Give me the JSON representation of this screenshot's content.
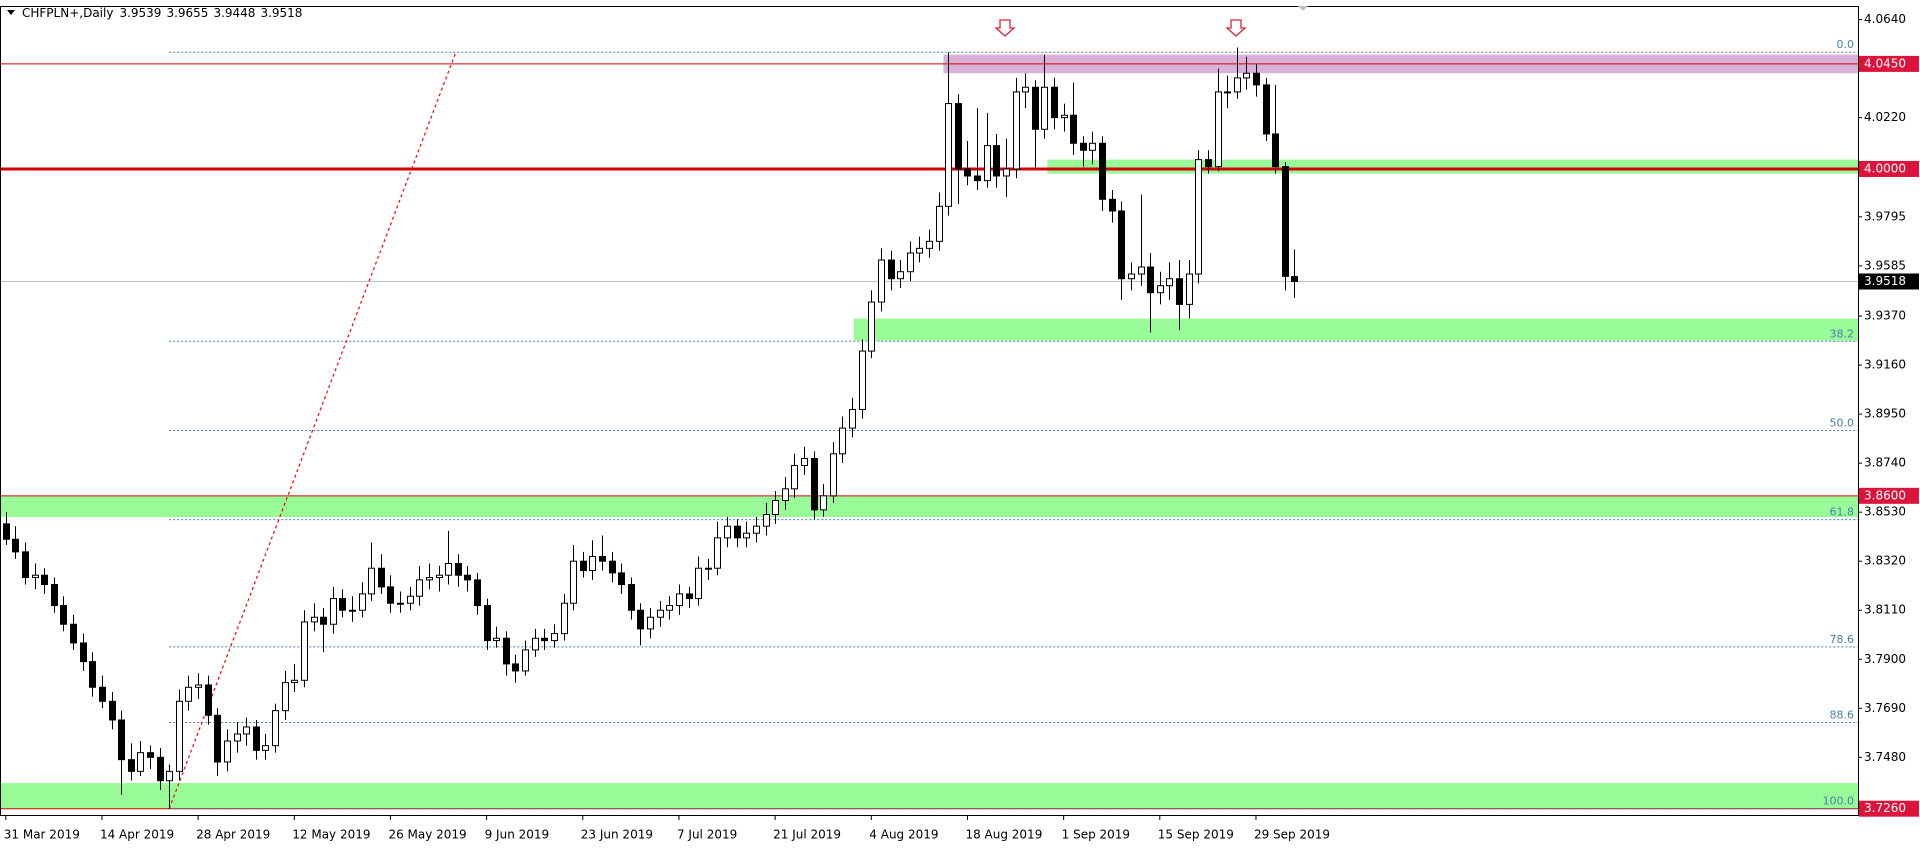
{
  "chart_data": {
    "type": "candlestick",
    "symbol": "CHFPLN+,Daily",
    "up_color": "#ffffff",
    "down_color": "#000000",
    "outline_color": "#000000",
    "grid": false,
    "xlim": [
      -0.6,
      192.6
    ],
    "xticks": [
      {
        "value": 0,
        "label": "31 Mar 2019"
      },
      {
        "value": 10,
        "label": "14 Apr 2019"
      },
      {
        "value": 20,
        "label": "28 Apr 2019"
      },
      {
        "value": 30,
        "label": "12 May 2019"
      },
      {
        "value": 40,
        "label": "26 May 2019"
      },
      {
        "value": 50,
        "label": "9 Jun 2019"
      },
      {
        "value": 60,
        "label": "23 Jun 2019"
      },
      {
        "value": 70,
        "label": "7 Jul 2019"
      },
      {
        "value": 80,
        "label": "21 Jul 2019"
      },
      {
        "value": 90,
        "label": "4 Aug 2019"
      },
      {
        "value": 100,
        "label": "18 Aug 2019"
      },
      {
        "value": 110,
        "label": "1 Sep 2019"
      },
      {
        "value": 120,
        "label": "15 Sep 2019"
      },
      {
        "value": 130,
        "label": "29 Sep 2019"
      }
    ],
    "ylim": [
      3.7233,
      4.0698
    ],
    "yticks": [
      {
        "value": 4.064,
        "label": "4.0640"
      },
      {
        "value": 4.022,
        "label": "4.0220"
      },
      {
        "value": 3.9795,
        "label": "3.9795"
      },
      {
        "value": 3.9585,
        "label": "3.9585"
      },
      {
        "value": 3.937,
        "label": "3.9370"
      },
      {
        "value": 3.916,
        "label": "3.9160"
      },
      {
        "value": 3.895,
        "label": "3.8950"
      },
      {
        "value": 3.874,
        "label": "3.8740"
      },
      {
        "value": 3.853,
        "label": "3.8530"
      },
      {
        "value": 3.832,
        "label": "3.8320"
      },
      {
        "value": 3.811,
        "label": "3.8110"
      },
      {
        "value": 3.79,
        "label": "3.7900"
      },
      {
        "value": 3.769,
        "label": "3.7690"
      },
      {
        "value": 3.748,
        "label": "3.7480"
      }
    ],
    "open": [
      3.848,
      3.8414,
      3.836,
      3.825,
      3.826,
      3.822,
      3.813,
      3.805,
      3.797,
      3.789,
      3.778,
      3.772,
      3.764,
      3.747,
      3.742,
      3.75,
      3.748,
      3.738,
      3.742,
      3.772,
      3.778,
      3.779,
      3.766,
      3.746,
      3.755,
      3.758,
      3.761,
      3.751,
      3.753,
      3.768,
      3.78,
      3.781,
      3.806,
      3.808,
      3.805,
      3.816,
      3.811,
      3.811,
      3.818,
      3.829,
      3.821,
      3.814,
      3.814,
      3.817,
      3.824,
      3.825,
      3.826,
      3.831,
      3.826,
      3.824,
      3.813,
      3.798,
      3.799,
      3.788,
      3.785,
      3.794,
      3.799,
      3.798,
      3.801,
      3.814,
      3.832,
      3.828,
      3.834,
      3.832,
      3.827,
      3.822,
      3.811,
      3.803,
      3.808,
      3.811,
      3.813,
      3.818,
      3.816,
      3.829,
      3.829,
      3.842,
      3.847,
      3.842,
      3.844,
      3.847,
      3.852,
      3.858,
      3.863,
      3.873,
      3.876,
      3.854,
      3.86,
      3.878,
      3.889,
      3.897,
      3.922,
      3.943,
      3.961,
      3.953,
      3.956,
      3.964,
      3.966,
      3.969,
      3.984,
      4.028,
      4.0,
      3.997,
      3.995,
      4.01,
      3.997,
      4.0,
      4.033,
      4.035,
      4.017,
      4.035,
      4.022,
      4.023,
      4.011,
      4.008,
      4.011,
      3.987,
      3.982,
      3.953,
      3.955,
      3.958,
      3.947,
      3.95,
      3.953,
      3.942,
      3.955,
      4.004,
      4.001,
      4.033,
      4.033,
      4.039,
      4.041,
      4.036,
      4.015,
      4.001,
      3.9539
    ],
    "high": [
      3.853,
      3.847,
      3.84,
      3.831,
      3.829,
      3.825,
      3.817,
      3.809,
      3.801,
      3.793,
      3.783,
      3.776,
      3.768,
      3.754,
      3.755,
      3.753,
      3.752,
      3.745,
      3.777,
      3.783,
      3.784,
      3.783,
      3.769,
      3.76,
      3.763,
      3.765,
      3.764,
      3.758,
      3.771,
      3.785,
      3.788,
      3.811,
      3.814,
      3.812,
      3.821,
      3.82,
      3.817,
      3.823,
      3.84,
      3.835,
      3.826,
      3.819,
      3.821,
      3.83,
      3.831,
      3.83,
      3.845,
      3.835,
      3.83,
      3.827,
      3.816,
      3.804,
      3.802,
      3.792,
      3.798,
      3.803,
      3.803,
      3.805,
      3.818,
      3.839,
      3.836,
      3.841,
      3.843,
      3.836,
      3.831,
      3.825,
      3.814,
      3.812,
      3.815,
      3.817,
      3.822,
      3.821,
      3.834,
      3.833,
      3.849,
      3.851,
      3.85,
      3.849,
      3.851,
      3.857,
      3.862,
      3.868,
      3.878,
      3.881,
      3.879,
      3.865,
      3.883,
      3.894,
      3.902,
      3.927,
      3.948,
      3.966,
      3.965,
      3.961,
      3.969,
      3.971,
      3.974,
      3.99,
      4.05,
      4.032,
      4.012,
      4.026,
      4.024,
      4.015,
      4.013,
      4.039,
      4.041,
      4.038,
      4.049,
      4.039,
      4.028,
      4.037,
      4.014,
      4.016,
      4.014,
      3.991,
      3.986,
      3.96,
      3.989,
      3.964,
      3.956,
      3.96,
      3.961,
      3.961,
      4.008,
      4.008,
      4.043,
      4.04,
      4.052,
      4.048,
      4.045,
      4.039,
      4.036,
      4.003,
      3.9655
    ],
    "low": [
      3.839,
      3.833,
      3.822,
      3.82,
      3.818,
      3.81,
      3.802,
      3.794,
      3.785,
      3.774,
      3.769,
      3.76,
      3.732,
      3.738,
      3.74,
      3.743,
      3.734,
      3.726,
      3.738,
      3.768,
      3.773,
      3.762,
      3.74,
      3.742,
      3.75,
      3.753,
      3.747,
      3.747,
      3.75,
      3.764,
      3.776,
      3.778,
      3.802,
      3.793,
      3.801,
      3.808,
      3.806,
      3.808,
      3.815,
      3.818,
      3.81,
      3.81,
      3.811,
      3.813,
      3.82,
      3.819,
      3.822,
      3.821,
      3.819,
      3.809,
      3.794,
      3.795,
      3.783,
      3.78,
      3.783,
      3.791,
      3.794,
      3.795,
      3.798,
      3.811,
      3.825,
      3.824,
      3.828,
      3.823,
      3.818,
      3.807,
      3.796,
      3.799,
      3.804,
      3.807,
      3.809,
      3.812,
      3.813,
      3.824,
      3.826,
      3.838,
      3.838,
      3.838,
      3.84,
      3.843,
      3.848,
      3.854,
      3.859,
      3.869,
      3.85,
      3.851,
      3.857,
      3.874,
      3.885,
      3.893,
      3.919,
      3.939,
      3.948,
      3.949,
      3.952,
      3.96,
      3.962,
      3.965,
      3.98,
      3.985,
      3.993,
      3.991,
      3.992,
      3.992,
      3.988,
      3.996,
      4.026,
      4.0,
      4.013,
      4.017,
      4.016,
      4.006,
      4.001,
      4.002,
      3.982,
      3.977,
      3.944,
      3.948,
      3.95,
      3.93,
      3.942,
      3.944,
      3.931,
      3.936,
      3.951,
      3.998,
      3.999,
      4.026,
      4.03,
      4.034,
      4.031,
      4.012,
      3.998,
      3.948,
      3.9448
    ],
    "close": [
      3.8414,
      3.836,
      3.825,
      3.826,
      3.822,
      3.813,
      3.805,
      3.797,
      3.789,
      3.778,
      3.772,
      3.764,
      3.747,
      3.742,
      3.75,
      3.748,
      3.738,
      3.742,
      3.772,
      3.778,
      3.779,
      3.766,
      3.746,
      3.755,
      3.758,
      3.761,
      3.751,
      3.753,
      3.768,
      3.78,
      3.781,
      3.806,
      3.808,
      3.805,
      3.816,
      3.811,
      3.811,
      3.818,
      3.829,
      3.821,
      3.814,
      3.814,
      3.817,
      3.824,
      3.825,
      3.826,
      3.831,
      3.826,
      3.824,
      3.813,
      3.798,
      3.799,
      3.788,
      3.785,
      3.794,
      3.799,
      3.798,
      3.801,
      3.814,
      3.832,
      3.828,
      3.834,
      3.832,
      3.827,
      3.822,
      3.811,
      3.803,
      3.808,
      3.811,
      3.813,
      3.818,
      3.816,
      3.829,
      3.829,
      3.842,
      3.847,
      3.842,
      3.844,
      3.847,
      3.852,
      3.858,
      3.863,
      3.873,
      3.876,
      3.854,
      3.86,
      3.878,
      3.889,
      3.897,
      3.922,
      3.943,
      3.961,
      3.953,
      3.956,
      3.964,
      3.966,
      3.969,
      3.984,
      4.028,
      4.0,
      3.997,
      3.995,
      4.01,
      3.997,
      4.0,
      4.033,
      4.035,
      4.017,
      4.035,
      4.022,
      4.023,
      4.011,
      4.008,
      4.011,
      3.987,
      3.982,
      3.953,
      3.955,
      3.958,
      3.947,
      3.95,
      3.953,
      3.942,
      3.955,
      4.004,
      4.001,
      4.033,
      4.033,
      4.039,
      4.041,
      4.036,
      4.015,
      4.001,
      3.954,
      3.9518
    ],
    "zones": [
      {
        "from": 4.041,
        "to": 4.049,
        "start": 97.5,
        "color": "#d8b0d8"
      },
      {
        "from": 3.998,
        "to": 4.004,
        "start": 108.3,
        "color": "#98fb98"
      },
      {
        "from": 3.9265,
        "to": 3.9359,
        "start": 88.2,
        "color": "#98fb98"
      },
      {
        "from": 3.8509,
        "to": 3.8598,
        "start": -0.6,
        "color": "#98fb98"
      },
      {
        "from": 3.726,
        "to": 3.737,
        "start": -0.6,
        "color": "#98fb98"
      }
    ],
    "hlines": [
      {
        "value": 4.045,
        "color": "#d40000",
        "width": 1
      },
      {
        "value": 4.0,
        "color": "#d40000",
        "width": 3
      },
      {
        "value": 3.9518,
        "color": "#c0c0c0",
        "width": 1
      },
      {
        "value": 3.86,
        "color": "#d40000",
        "width": 1
      },
      {
        "value": 3.726,
        "color": "#d40000",
        "width": 1
      }
    ],
    "price_labels": [
      {
        "value": 4.045,
        "label": "4.0450",
        "color": "#dc143c"
      },
      {
        "value": 4.0,
        "label": "4.0000",
        "color": "#dc143c"
      },
      {
        "value": 3.9518,
        "label": "3.9518",
        "color": "#000000"
      },
      {
        "value": 3.86,
        "label": "3.8600",
        "color": "#dc143c"
      },
      {
        "value": 3.726,
        "label": "3.7260",
        "color": "#dc143c"
      }
    ],
    "fibo": {
      "start": 17,
      "color": "#4a7fb0",
      "levels": [
        {
          "label": "0.0",
          "price": 4.05
        },
        {
          "label": "38.2",
          "price": 3.9262
        },
        {
          "label": "50.0",
          "price": 3.888
        },
        {
          "label": "61.8",
          "price": 3.8498
        },
        {
          "label": "78.6",
          "price": 3.7953
        },
        {
          "label": "88.6",
          "price": 3.7629
        },
        {
          "label": "100.0",
          "price": 3.726
        }
      ]
    },
    "trendline": {
      "x": [
        17,
        46.8
      ],
      "y": [
        3.726,
        4.05
      ],
      "color": "#ff0000"
    }
  }
}
